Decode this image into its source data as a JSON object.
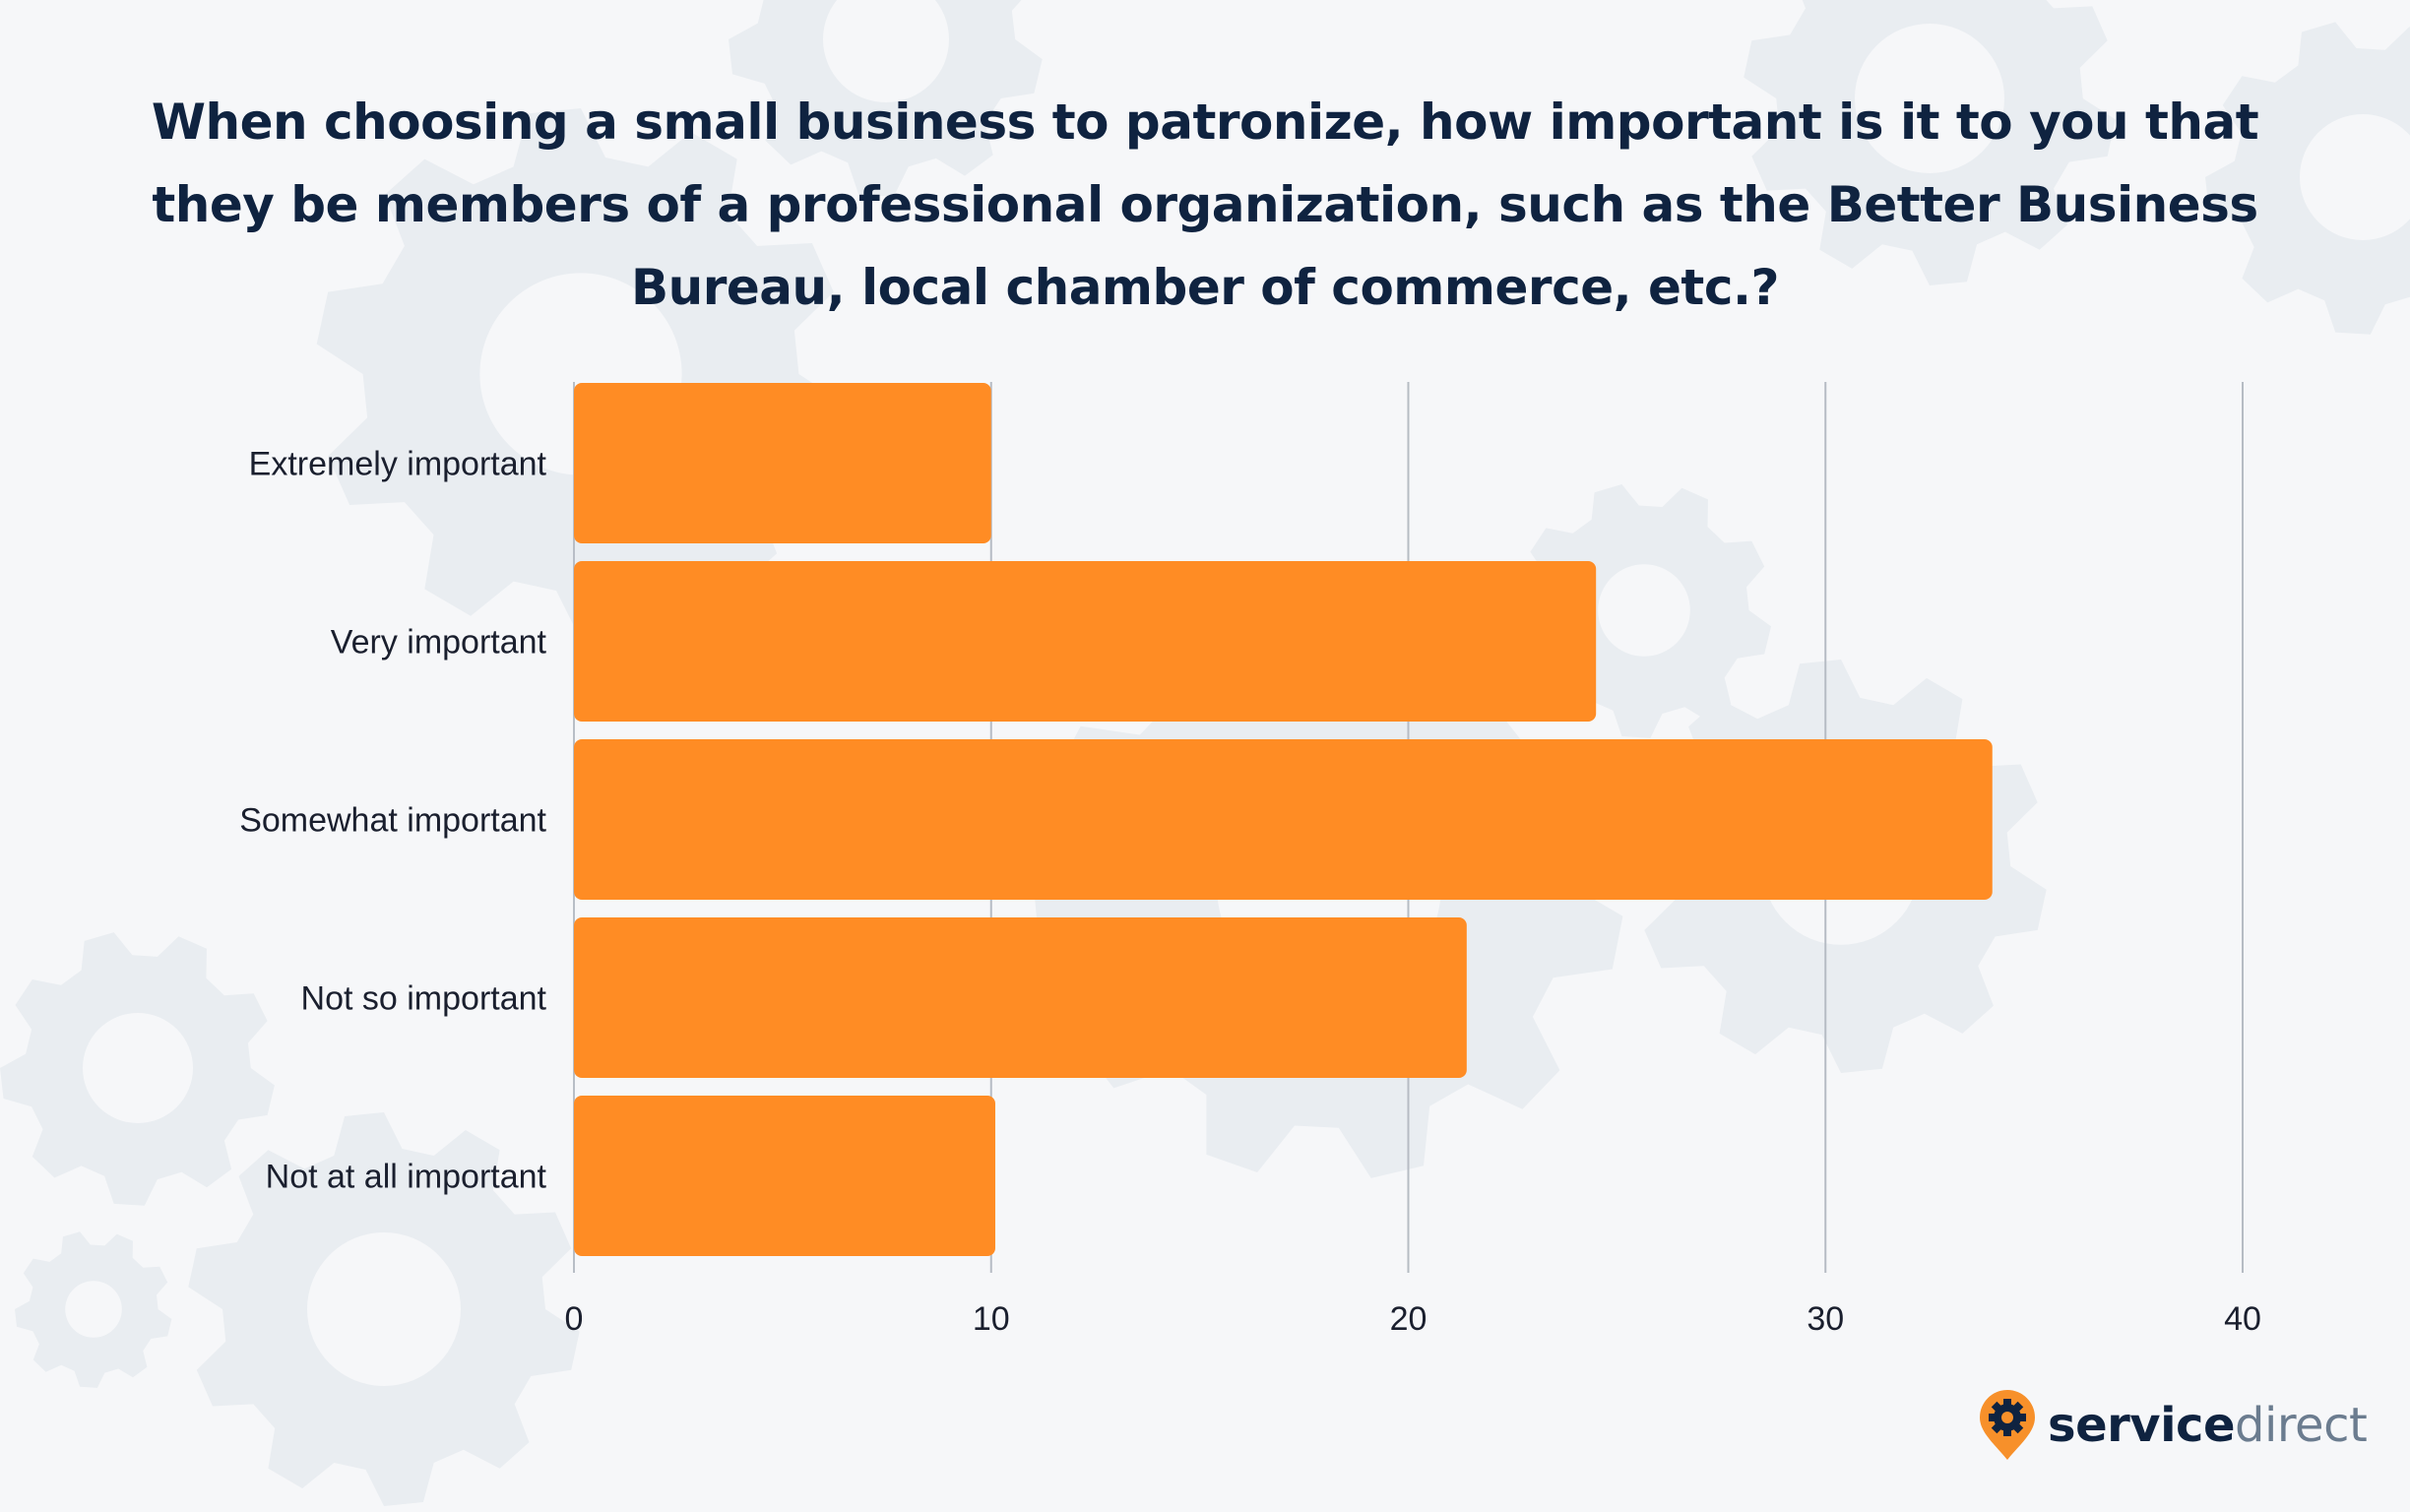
{
  "title_lines": [
    "When choosing a small business to patronize, how important is it to you that",
    "they be members of a professional organization, such as the Better Business",
    "Bureau, local chamber of commerce, etc.?"
  ],
  "brand": {
    "part1": "service",
    "part2": "direct",
    "pin_color": "#f7902a",
    "dark_color": "#0f2340"
  },
  "chart_data": {
    "type": "bar",
    "orientation": "horizontal",
    "title": "When choosing a small business to patronize, how important is it to you that they be members of a professional organization, such as the Better Business Bureau, local chamber of commerce, etc.?",
    "categories": [
      "Extremely important",
      "Very important",
      "Somewhat important",
      "Not so important",
      "Not at all important"
    ],
    "values": [
      10,
      24.5,
      34,
      21.4,
      10.1
    ],
    "xlim": [
      0,
      40
    ],
    "xticks": [
      0,
      10,
      20,
      30,
      40
    ],
    "grid": true,
    "bar_color": "#ff8c24",
    "xlabel": "",
    "ylabel": ""
  }
}
